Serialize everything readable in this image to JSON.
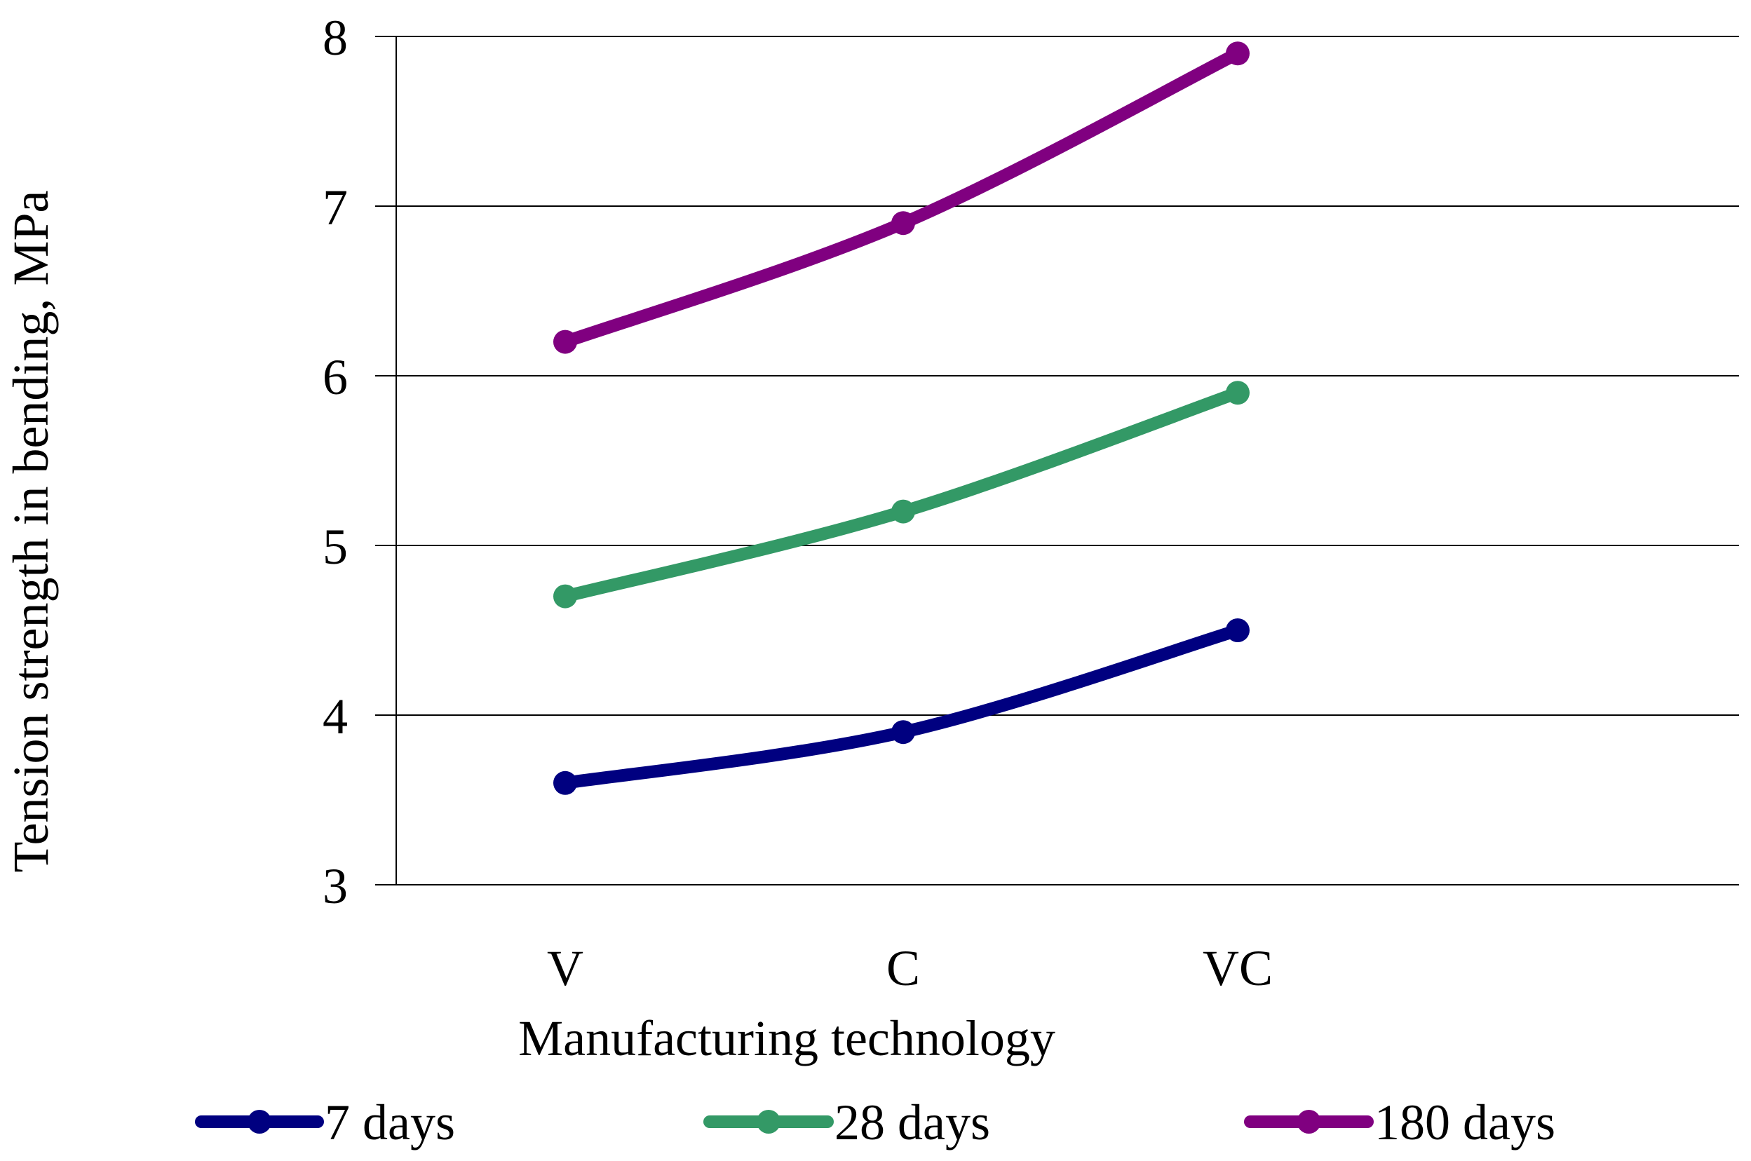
{
  "chart_data": {
    "type": "line",
    "categories": [
      "V",
      "C",
      "VC"
    ],
    "series": [
      {
        "name": "7 days",
        "values": [
          3.6,
          3.9,
          4.5
        ],
        "color": "#000080"
      },
      {
        "name": "28 days",
        "values": [
          4.7,
          5.2,
          5.9
        ],
        "color": "#339966"
      },
      {
        "name": "180 days",
        "values": [
          6.2,
          6.9,
          7.9
        ],
        "color": "#800080"
      }
    ],
    "xlabel": "Manufacturing technology",
    "ylabel": "Tension strength in bending, MPa",
    "ylim": [
      3,
      8
    ],
    "yticks": [
      3,
      4,
      5,
      6,
      7,
      8
    ],
    "grid": true,
    "legend": "bottom"
  }
}
